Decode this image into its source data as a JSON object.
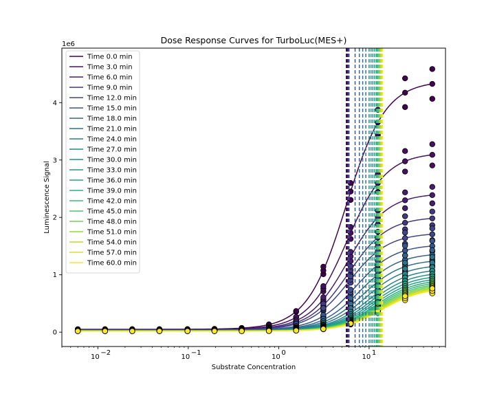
{
  "chart_data": {
    "type": "line",
    "title": "Dose Response Curves for TurboLuc(MES+)",
    "xlabel": "Substrate Concentration",
    "ylabel": "Luminescence Signal",
    "y_offset_text": "1e6",
    "x_scale": "log",
    "xlim": [
      0.004,
      70
    ],
    "ylim": [
      -250000,
      4950000
    ],
    "x_ticks": [
      {
        "value": 0.01,
        "base": "10",
        "exp": "−2"
      },
      {
        "value": 0.1,
        "base": "10",
        "exp": "−1"
      },
      {
        "value": 1,
        "base": "10",
        "exp": "0"
      },
      {
        "value": 10,
        "base": "10",
        "exp": "1"
      }
    ],
    "y_ticks": [
      {
        "value": 0,
        "label": "0"
      },
      {
        "value": 1000000,
        "label": "1"
      },
      {
        "value": 2000000,
        "label": "2"
      },
      {
        "value": 3000000,
        "label": "3"
      },
      {
        "value": 4000000,
        "label": "4"
      }
    ],
    "legend_position": "upper-left",
    "concentrations": [
      0.006,
      0.012,
      0.024,
      0.048,
      0.098,
      0.195,
      0.39,
      0.78,
      1.56,
      3.12,
      6.25,
      12.5,
      25,
      50
    ],
    "series": [
      {
        "name": "Time 0.0 min",
        "color": "#440154",
        "top": 4380000,
        "ec50": 5.6,
        "hill": 2.0,
        "bottom": 50000
      },
      {
        "name": "Time 3.0 min",
        "color": "#470f62",
        "top": 3130000,
        "ec50": 5.7,
        "hill": 2.0,
        "bottom": 45000
      },
      {
        "name": "Time 6.0 min",
        "color": "#481d6f",
        "top": 2420000,
        "ec50": 5.8,
        "hill": 2.0,
        "bottom": 40000
      },
      {
        "name": "Time 9.0 min",
        "color": "#453781",
        "top": 2010000,
        "ec50": 5.9,
        "hill": 2.0,
        "bottom": 38000
      },
      {
        "name": "Time 12.0 min",
        "color": "#3f4788",
        "top": 1730000,
        "ec50": 6.0,
        "hill": 2.0,
        "bottom": 35000
      },
      {
        "name": "Time 15.0 min",
        "color": "#39558c",
        "top": 1530000,
        "ec50": 7.0,
        "hill": 2.0,
        "bottom": 33000
      },
      {
        "name": "Time 18.0 min",
        "color": "#32648e",
        "top": 1380000,
        "ec50": 7.8,
        "hill": 2.0,
        "bottom": 32000
      },
      {
        "name": "Time 21.0 min",
        "color": "#2d718e",
        "top": 1270000,
        "ec50": 8.5,
        "hill": 2.0,
        "bottom": 31000
      },
      {
        "name": "Time 24.0 min",
        "color": "#297b8e",
        "top": 1180000,
        "ec50": 9.2,
        "hill": 2.0,
        "bottom": 30000
      },
      {
        "name": "Time 27.0 min",
        "color": "#25858e",
        "top": 1110000,
        "ec50": 10.0,
        "hill": 2.0,
        "bottom": 29000
      },
      {
        "name": "Time 30.0 min",
        "color": "#21918c",
        "top": 1050000,
        "ec50": 10.5,
        "hill": 2.0,
        "bottom": 28000
      },
      {
        "name": "Time 33.0 min",
        "color": "#1e9c89",
        "top": 1000000,
        "ec50": 11.0,
        "hill": 2.0,
        "bottom": 27000
      },
      {
        "name": "Time 36.0 min",
        "color": "#20a386",
        "top": 960000,
        "ec50": 11.5,
        "hill": 2.0,
        "bottom": 26000
      },
      {
        "name": "Time 39.0 min",
        "color": "#28ae80",
        "top": 925000,
        "ec50": 12.0,
        "hill": 2.0,
        "bottom": 25000
      },
      {
        "name": "Time 42.0 min",
        "color": "#3bbb75",
        "top": 895000,
        "ec50": 12.3,
        "hill": 2.0,
        "bottom": 24000
      },
      {
        "name": "Time 45.0 min",
        "color": "#4ec36b",
        "top": 868000,
        "ec50": 12.6,
        "hill": 2.0,
        "bottom": 23000
      },
      {
        "name": "Time 48.0 min",
        "color": "#75d054",
        "top": 845000,
        "ec50": 12.9,
        "hill": 2.0,
        "bottom": 22000
      },
      {
        "name": "Time 51.0 min",
        "color": "#95d840",
        "top": 825000,
        "ec50": 13.2,
        "hill": 2.0,
        "bottom": 21000
      },
      {
        "name": "Time 54.0 min",
        "color": "#bade28",
        "top": 808000,
        "ec50": 13.5,
        "hill": 2.0,
        "bottom": 20000
      },
      {
        "name": "Time 57.0 min",
        "color": "#dde318",
        "top": 790000,
        "ec50": 13.8,
        "hill": 2.0,
        "bottom": 19000
      },
      {
        "name": "Time 60.0 min",
        "color": "#fde725",
        "top": 775000,
        "ec50": 14.1,
        "hill": 2.0,
        "bottom": 18000
      }
    ]
  }
}
